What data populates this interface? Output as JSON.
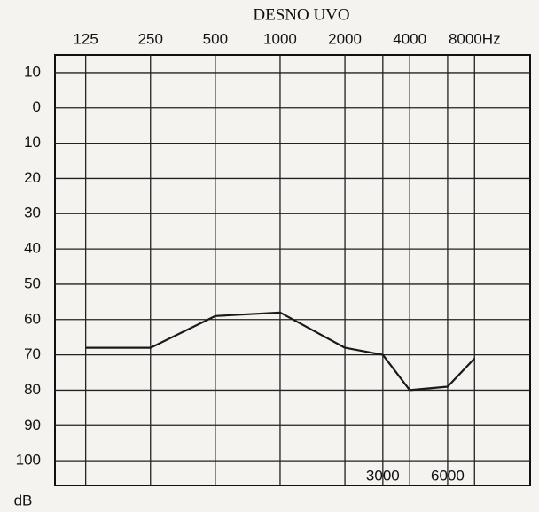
{
  "chart_data": {
    "type": "line",
    "title": "DESNO UVO",
    "y_label": "dB",
    "log_x": true,
    "invert_y": true,
    "grid": true,
    "xlim": [
      90,
      14500
    ],
    "ylim": [
      -15,
      107
    ],
    "xticks": [
      125,
      250,
      500,
      1000,
      2000,
      4000,
      {
        "value": 8000,
        "label": "8000Hz"
      }
    ],
    "bottom_xticks": [
      3000,
      6000
    ],
    "yticks": [
      {
        "value": -10,
        "label": "10"
      },
      0,
      10,
      20,
      30,
      40,
      50,
      60,
      70,
      80,
      90,
      100
    ],
    "series": [
      {
        "color": "#1a1a1a",
        "x": [
          125,
          250,
          500,
          1000,
          2000,
          3000,
          4000,
          6000,
          8000
        ],
        "values": [
          68,
          68,
          59,
          58,
          68,
          70,
          80,
          79,
          71
        ]
      }
    ]
  }
}
